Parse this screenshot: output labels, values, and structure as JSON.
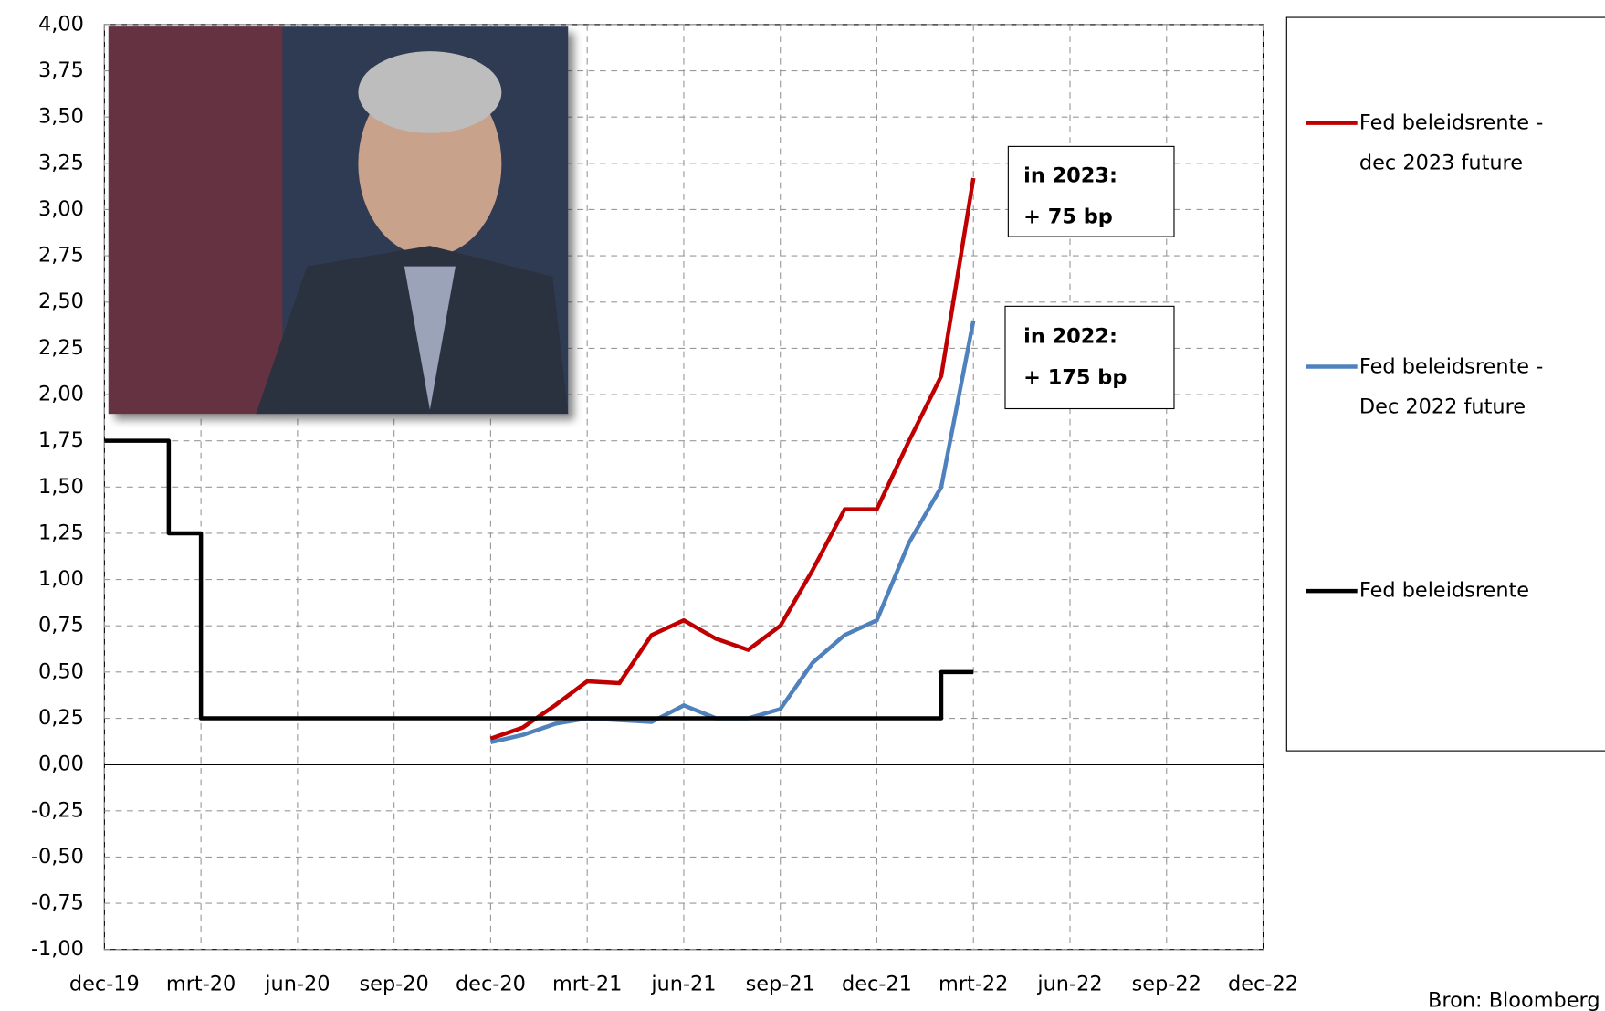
{
  "chart_data": {
    "type": "line",
    "xticks": [
      {
        "value": "2019-12",
        "label": "dec-19"
      },
      {
        "value": "2020-03",
        "label": "mrt-20"
      },
      {
        "value": "2020-06",
        "label": "jun-20"
      },
      {
        "value": "2020-09",
        "label": "sep-20"
      },
      {
        "value": "2020-12",
        "label": "dec-20"
      },
      {
        "value": "2021-03",
        "label": "mrt-21"
      },
      {
        "value": "2021-06",
        "label": "jun-21"
      },
      {
        "value": "2021-09",
        "label": "sep-21"
      },
      {
        "value": "2021-12",
        "label": "dec-21"
      },
      {
        "value": "2022-03",
        "label": "mrt-22"
      },
      {
        "value": "2022-06",
        "label": "jun-22"
      },
      {
        "value": "2022-09",
        "label": "sep-22"
      },
      {
        "value": "2022-12",
        "label": "dec-22"
      }
    ],
    "xlim": [
      "2019-12",
      "2022-12"
    ],
    "ylim": [
      -1,
      4
    ],
    "yticks": [
      {
        "value": 4,
        "label": "4,00"
      },
      {
        "value": 3.75,
        "label": "3,75"
      },
      {
        "value": 3.5,
        "label": "3,50"
      },
      {
        "value": 3.25,
        "label": "3,25"
      },
      {
        "value": 3,
        "label": "3,00"
      },
      {
        "value": 2.75,
        "label": "2,75"
      },
      {
        "value": 2.5,
        "label": "2,50"
      },
      {
        "value": 2.25,
        "label": "2,25"
      },
      {
        "value": 2,
        "label": "2,00"
      },
      {
        "value": 1.75,
        "label": "1,75"
      },
      {
        "value": 1.5,
        "label": "1,50"
      },
      {
        "value": 1.25,
        "label": "1,25"
      },
      {
        "value": 1,
        "label": "1,00"
      },
      {
        "value": 0.75,
        "label": "0,75"
      },
      {
        "value": 0.5,
        "label": "0,50"
      },
      {
        "value": 0.25,
        "label": "0,25"
      },
      {
        "value": 0,
        "label": "0,00"
      },
      {
        "value": -0.25,
        "label": "-0,25"
      },
      {
        "value": -0.5,
        "label": "-0,50"
      },
      {
        "value": -0.75,
        "label": "-0,75"
      },
      {
        "value": -1,
        "label": "-1,00"
      }
    ],
    "grid": true,
    "legend": "right",
    "series": [
      {
        "name": "Fed beleidsrente - dec 2023 future",
        "color": "#c00000",
        "x": [
          "2020-12",
          "2021-01",
          "2021-02",
          "2021-03",
          "2021-04",
          "2021-05",
          "2021-06",
          "2021-07",
          "2021-08",
          "2021-09",
          "2021-10",
          "2021-11",
          "2021-12",
          "2022-01",
          "2022-02",
          "2022-03"
        ],
        "values": [
          0.14,
          0.2,
          0.32,
          0.45,
          0.44,
          0.7,
          0.78,
          0.68,
          0.62,
          0.75,
          1.05,
          1.38,
          1.38,
          1.75,
          2.1,
          3.17
        ]
      },
      {
        "name": "Fed beleidsrente - Dec 2022 future",
        "color": "#4f81bd",
        "x": [
          "2020-12",
          "2021-01",
          "2021-02",
          "2021-03",
          "2021-04",
          "2021-05",
          "2021-06",
          "2021-07",
          "2021-08",
          "2021-09",
          "2021-10",
          "2021-11",
          "2021-12",
          "2022-01",
          "2022-02",
          "2022-03"
        ],
        "values": [
          0.12,
          0.16,
          0.22,
          0.25,
          0.24,
          0.23,
          0.32,
          0.25,
          0.25,
          0.3,
          0.55,
          0.7,
          0.78,
          1.2,
          1.5,
          2.4
        ]
      },
      {
        "name": "Fed beleidsrente",
        "color": "#000000",
        "x": [
          "2019-12",
          "2020-02",
          "2020-02",
          "2020-03",
          "2020-03",
          "2022-02",
          "2022-02",
          "2022-03"
        ],
        "values": [
          1.75,
          1.75,
          1.25,
          1.25,
          0.25,
          0.25,
          0.5,
          0.5
        ]
      }
    ],
    "annotations": [
      {
        "lines": [
          "in 2023:",
          "+ 75 bp"
        ],
        "color": "#c00000"
      },
      {
        "lines": [
          "in 2022:",
          "+ 175 bp"
        ],
        "color": "#1f4e79"
      }
    ],
    "source": "Bron: Bloomberg"
  }
}
